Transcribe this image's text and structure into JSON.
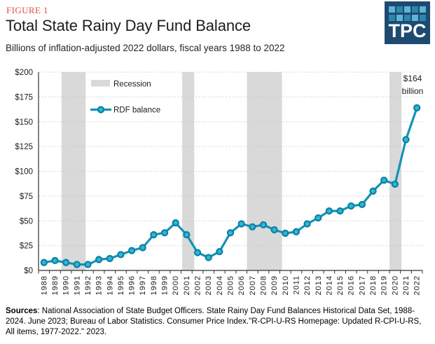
{
  "header": {
    "figure_label": "FIGURE 1",
    "logo_text": "TPC"
  },
  "colors": {
    "accent_red": "#e05149",
    "line": "#1593b6",
    "marker_fill": "#30b6d9",
    "marker_stroke": "#0d82a2",
    "recession_band": "#d9d9d9",
    "grid": "#c8c8c8",
    "axis": "#333333",
    "text": "#1c1c1c",
    "logo_bg": "#1d4a6e",
    "logo_square_light": "#5cb6d3",
    "logo_square_dark": "#2b85ad"
  },
  "chart_data": {
    "type": "line",
    "title": "Total State Rainy Day Fund Balance",
    "subtitle": "Billions of inflation-adjusted 2022 dollars, fiscal years 1988 to 2022",
    "xlabel": "",
    "ylabel": "",
    "x": [
      1988,
      1989,
      1990,
      1991,
      1992,
      1993,
      1994,
      1995,
      1996,
      1997,
      1998,
      1999,
      2000,
      2001,
      2002,
      2003,
      2004,
      2005,
      2006,
      2007,
      2008,
      2009,
      2010,
      2011,
      2012,
      2013,
      2014,
      2015,
      2016,
      2017,
      2018,
      2019,
      2020,
      2021,
      2022
    ],
    "series": [
      {
        "name": "RDF balance",
        "values": [
          8,
          10,
          8,
          6,
          6,
          11,
          12,
          16,
          20,
          23,
          36,
          38,
          48,
          36,
          18,
          13,
          19,
          38,
          47,
          44,
          46,
          41,
          37.5,
          39,
          47,
          53,
          60,
          60,
          65,
          66.5,
          80,
          91,
          87,
          132,
          164
        ]
      }
    ],
    "ylim": [
      0,
      200
    ],
    "y_ticks": [
      0,
      25,
      50,
      75,
      100,
      125,
      150,
      175,
      200
    ],
    "y_tick_labels": [
      "$0",
      "$25",
      "$50",
      "$75",
      "$100",
      "$125",
      "$150",
      "$175",
      "$200"
    ],
    "grid": "dotted horizontal",
    "legend_position": "top-left inside plot",
    "legend": [
      {
        "label": "Recession",
        "type": "band"
      },
      {
        "label": "RDF balance",
        "type": "line"
      }
    ],
    "recession_bands": [
      {
        "from": 1989.6,
        "to": 1991.8
      },
      {
        "from": 2000.6,
        "to": 2001.7
      },
      {
        "from": 2006.5,
        "to": 2009.7
      },
      {
        "from": 2019.5,
        "to": 2020.6
      }
    ],
    "annotation": {
      "lines": [
        "$164",
        "billion"
      ],
      "year": 2022
    }
  },
  "footer": {
    "sources_label": "Sources",
    "sources_text": ": National Association of State Budget Officers. State Rainy Day Fund Balances Historical Data Set, 1988-2024.  June 2023; Bureau of Labor Statistics. Consumer Price Index.\"R-CPI-U-RS Homepage: Updated R-CPI-U-RS,  All items, 1977-2022.\"  2023."
  }
}
